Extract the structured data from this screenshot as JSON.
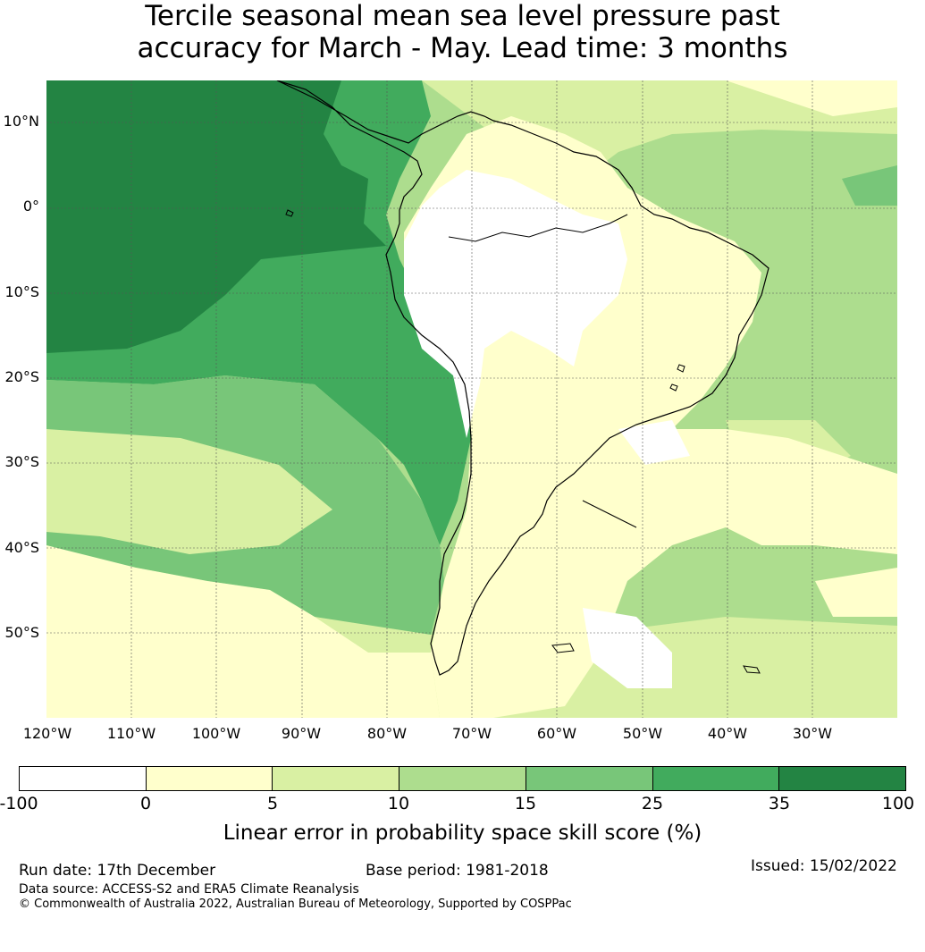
{
  "title": {
    "line1": "Tercile seasonal mean sea level pressure past",
    "line2": "accuracy for March - May. Lead time: 3 months"
  },
  "map": {
    "latitude_labels": [
      "10°N",
      "0°",
      "10°S",
      "20°S",
      "30°S",
      "40°S",
      "50°S"
    ],
    "longitude_labels": [
      "120°W",
      "110°W",
      "100°W",
      "90°W",
      "80°W",
      "70°W",
      "60°W",
      "50°W",
      "40°W",
      "30°W"
    ],
    "extent": {
      "lon_min": -122,
      "lon_max": -22,
      "lat_min": -60,
      "lat_max": 15
    }
  },
  "colorbar": {
    "tick_labels": [
      "-100",
      "0",
      "5",
      "10",
      "15",
      "25",
      "35",
      "100"
    ],
    "colors": [
      "#ffffff",
      "#ffffcc",
      "#d9f0a3",
      "#addd8e",
      "#78c679",
      "#41ab5d",
      "#238443"
    ],
    "label": "Linear error in probability space skill score (%)"
  },
  "footer": {
    "run_date": "Run date: 17th December",
    "base_period": "Base period: 1981-2018",
    "issued": "Issued: 15/02/2022",
    "data_source": "Data source: ACCESS-S2 and ERA5 Climate Reanalysis",
    "copyright": "© Commonwealth of Australia 2022, Australian Bureau of Meteorology, Supported by COSPPac"
  }
}
